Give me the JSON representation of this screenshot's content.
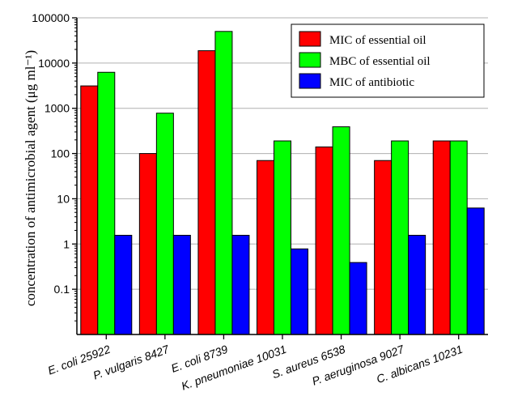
{
  "chart_data": {
    "type": "bar",
    "scale": "log",
    "ylabel": "concentration of antimicrobial agent (μg ml⁻¹)",
    "xlabel": "",
    "ylim": [
      0.01,
      100000
    ],
    "y_ticks": [
      {
        "value": 0.1,
        "label": "0.1"
      },
      {
        "value": 1,
        "label": "1"
      },
      {
        "value": 10,
        "label": "10"
      },
      {
        "value": 100,
        "label": "100"
      },
      {
        "value": 1000,
        "label": "1000"
      },
      {
        "value": 10000,
        "label": "10000"
      },
      {
        "value": 100000,
        "label": "100000"
      }
    ],
    "grid": true,
    "legend_position": "top-right",
    "categories": [
      "E. coli 25922",
      "P. vulgaris 8427",
      "E. coli 8739",
      "K. pneumoniae 10031",
      "S. aureus 6538",
      "P. aeruginosa 9027",
      "C. albicans 10231"
    ],
    "series": [
      {
        "name": "MIC of essential oil",
        "color": "#ff0000",
        "values": [
          3125,
          100,
          18750,
          70,
          140,
          70,
          190
        ]
      },
      {
        "name": "MBC of essential oil",
        "color": "#00ff00",
        "values": [
          6250,
          780,
          50000,
          190,
          390,
          190,
          190
        ]
      },
      {
        "name": "MIC of antibiotic",
        "color": "#0000ff",
        "values": [
          1.56,
          1.56,
          1.56,
          0.78,
          0.39,
          1.56,
          6.25
        ]
      }
    ]
  }
}
